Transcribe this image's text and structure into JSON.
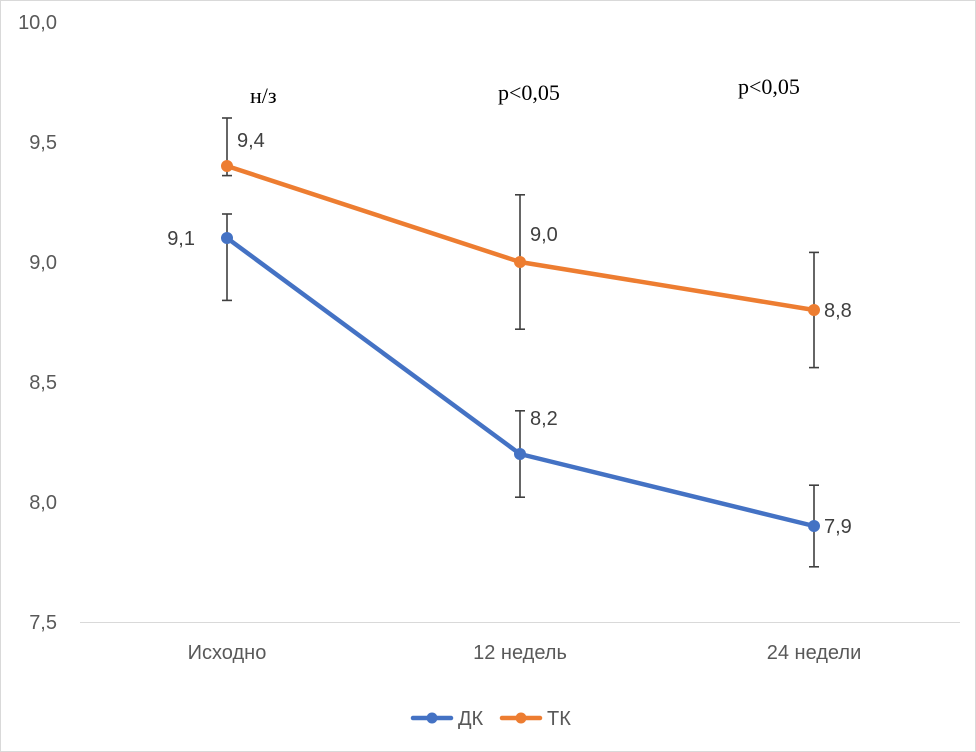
{
  "chart_data": {
    "type": "line",
    "categories": [
      "Исходно",
      "12 недель",
      "24 недели"
    ],
    "series": [
      {
        "name": "ДК",
        "color": "#4472c4",
        "values": [
          9.1,
          8.2,
          7.9
        ],
        "labels": [
          "9,1",
          "8,2",
          "7,9"
        ],
        "error_low": [
          8.84,
          8.02,
          7.73
        ],
        "error_high": [
          9.2,
          8.38,
          8.07
        ]
      },
      {
        "name": "ТК",
        "color": "#ed7d31",
        "values": [
          9.4,
          9.0,
          8.8
        ],
        "labels": [
          "9,4",
          "9,0",
          "8,8"
        ],
        "error_low": [
          9.36,
          8.72,
          8.56
        ],
        "error_high": [
          9.6,
          9.28,
          9.04
        ]
      }
    ],
    "annotations": [
      "н/з",
      "p<0,05",
      "p<0,05"
    ],
    "ylim": [
      7.5,
      10.0
    ],
    "yticks": [
      7.5,
      8.0,
      8.5,
      9.0,
      9.5,
      10.0
    ],
    "ytick_labels": [
      "7,5",
      "8,0",
      "8,5",
      "9,0",
      "9,5",
      "10,0"
    ],
    "legend_position": "bottom",
    "grid": false
  }
}
